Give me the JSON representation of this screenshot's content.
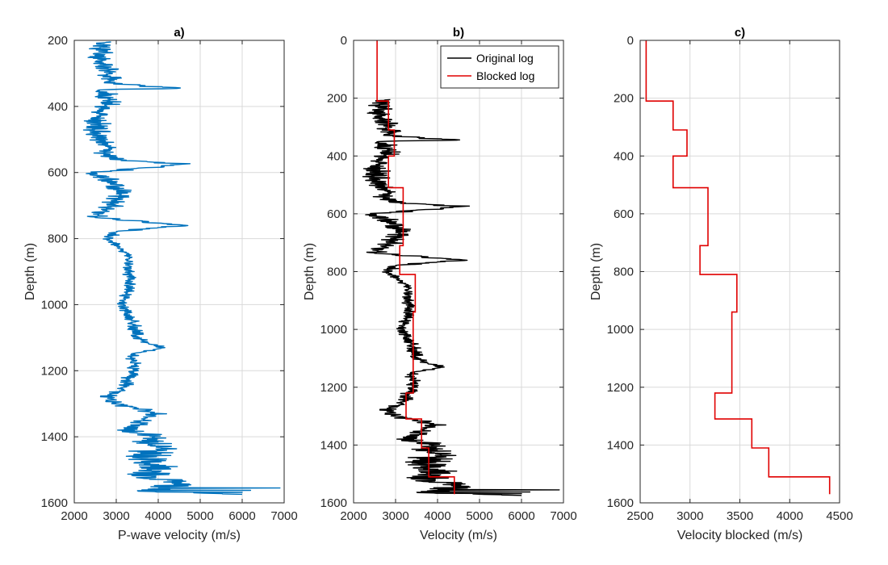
{
  "chart_data": [
    {
      "type": "line",
      "title": "a)",
      "xlabel": "P-wave velocity (m/s)",
      "ylabel": "Depth (m)",
      "xlim": [
        2000,
        7000
      ],
      "ylim": [
        200,
        1600
      ],
      "y_reversed": true,
      "x_ticks": [
        2000,
        3000,
        4000,
        5000,
        6000,
        7000
      ],
      "y_ticks": [
        200,
        400,
        600,
        800,
        1000,
        1200,
        1400,
        1600
      ],
      "grid": true,
      "series": [
        {
          "kind": "jagged",
          "color": "#0072BD",
          "points": [
            [
              205,
              2700
            ],
            [
              250,
              2600
            ],
            [
              300,
              2800
            ],
            [
              330,
              2850
            ],
            [
              345,
              4450
            ],
            [
              350,
              2600
            ],
            [
              380,
              2900
            ],
            [
              420,
              2600
            ],
            [
              470,
              2500
            ],
            [
              510,
              2700
            ],
            [
              560,
              2900
            ],
            [
              575,
              4600
            ],
            [
              600,
              2500
            ],
            [
              650,
              3100
            ],
            [
              700,
              2900
            ],
            [
              735,
              2500
            ],
            [
              760,
              4600
            ],
            [
              780,
              2900
            ],
            [
              800,
              2800
            ],
            [
              850,
              3300
            ],
            [
              900,
              3300
            ],
            [
              950,
              3300
            ],
            [
              1000,
              3100
            ],
            [
              1050,
              3400
            ],
            [
              1100,
              3500
            ],
            [
              1130,
              4100
            ],
            [
              1150,
              3400
            ],
            [
              1200,
              3400
            ],
            [
              1250,
              3200
            ],
            [
              1280,
              2800
            ],
            [
              1300,
              3000
            ],
            [
              1330,
              4000
            ],
            [
              1350,
              3600
            ],
            [
              1380,
              3400
            ],
            [
              1400,
              3800
            ],
            [
              1430,
              4000
            ],
            [
              1460,
              3700
            ],
            [
              1490,
              3900
            ],
            [
              1520,
              3700
            ],
            [
              1540,
              4500
            ],
            [
              1565,
              3800
            ],
            [
              1575,
              6000
            ]
          ],
          "amplitude": [
            [
              205,
              400
            ],
            [
              350,
              350
            ],
            [
              500,
              380
            ],
            [
              650,
              380
            ],
            [
              780,
              300
            ],
            [
              800,
              150
            ],
            [
              1100,
              200
            ],
            [
              1200,
              200
            ],
            [
              1300,
              280
            ],
            [
              1350,
              350
            ],
            [
              1400,
              500
            ],
            [
              1500,
              700
            ],
            [
              1575,
              600
            ]
          ],
          "spikes": [
            [
              1555,
              6900
            ],
            [
              1562,
              6200
            ],
            [
              1568,
              6000
            ]
          ]
        }
      ]
    },
    {
      "type": "line",
      "title": "b)",
      "xlabel": "Velocity (m/s)",
      "ylabel": "Depth (m)",
      "xlim": [
        2000,
        7000
      ],
      "ylim": [
        0,
        1600
      ],
      "y_reversed": true,
      "x_ticks": [
        2000,
        3000,
        4000,
        5000,
        6000,
        7000
      ],
      "y_ticks": [
        0,
        200,
        400,
        600,
        800,
        1000,
        1200,
        1400,
        1600
      ],
      "grid": true,
      "legend": "top-right",
      "series": [
        {
          "name": "Original log",
          "kind": "jagged",
          "color": "#000000",
          "points": [
            [
              205,
              2700
            ],
            [
              250,
              2600
            ],
            [
              300,
              2800
            ],
            [
              330,
              2850
            ],
            [
              345,
              4450
            ],
            [
              350,
              2600
            ],
            [
              380,
              2900
            ],
            [
              420,
              2600
            ],
            [
              470,
              2500
            ],
            [
              510,
              2700
            ],
            [
              560,
              2900
            ],
            [
              575,
              4600
            ],
            [
              600,
              2500
            ],
            [
              650,
              3100
            ],
            [
              700,
              2900
            ],
            [
              735,
              2500
            ],
            [
              760,
              4600
            ],
            [
              780,
              2900
            ],
            [
              800,
              2800
            ],
            [
              850,
              3300
            ],
            [
              900,
              3300
            ],
            [
              950,
              3300
            ],
            [
              1000,
              3100
            ],
            [
              1050,
              3400
            ],
            [
              1100,
              3500
            ],
            [
              1130,
              4100
            ],
            [
              1150,
              3400
            ],
            [
              1200,
              3400
            ],
            [
              1250,
              3200
            ],
            [
              1280,
              2800
            ],
            [
              1300,
              3000
            ],
            [
              1330,
              4000
            ],
            [
              1350,
              3600
            ],
            [
              1380,
              3400
            ],
            [
              1400,
              3800
            ],
            [
              1430,
              4000
            ],
            [
              1460,
              3700
            ],
            [
              1490,
              3900
            ],
            [
              1520,
              3700
            ],
            [
              1540,
              4500
            ],
            [
              1565,
              3800
            ],
            [
              1575,
              6000
            ]
          ],
          "amplitude": [
            [
              205,
              400
            ],
            [
              350,
              350
            ],
            [
              500,
              380
            ],
            [
              650,
              380
            ],
            [
              780,
              300
            ],
            [
              800,
              150
            ],
            [
              1100,
              200
            ],
            [
              1200,
              200
            ],
            [
              1300,
              280
            ],
            [
              1350,
              350
            ],
            [
              1400,
              500
            ],
            [
              1500,
              700
            ],
            [
              1575,
              600
            ]
          ],
          "spikes": [
            [
              1555,
              6900
            ],
            [
              1562,
              6200
            ],
            [
              1568,
              6000
            ]
          ]
        },
        {
          "name": "Blocked log",
          "kind": "step",
          "color": "#E00000",
          "steps": [
            [
              0,
              210,
              2560
            ],
            [
              210,
              310,
              2830
            ],
            [
              310,
              400,
              2970
            ],
            [
              400,
              510,
              2830
            ],
            [
              510,
              710,
              3180
            ],
            [
              710,
              810,
              3100
            ],
            [
              810,
              940,
              3470
            ],
            [
              940,
              1220,
              3420
            ],
            [
              1220,
              1310,
              3250
            ],
            [
              1310,
              1410,
              3620
            ],
            [
              1410,
              1510,
              3790
            ],
            [
              1510,
              1570,
              4400
            ]
          ]
        }
      ]
    },
    {
      "type": "line",
      "title": "c)",
      "xlabel": "Velocity blocked (m/s)",
      "ylabel": "Depth (m)",
      "xlim": [
        2500,
        4500
      ],
      "ylim": [
        0,
        1600
      ],
      "y_reversed": true,
      "x_ticks": [
        2500,
        3000,
        3500,
        4000,
        4500
      ],
      "y_ticks": [
        0,
        200,
        400,
        600,
        800,
        1000,
        1200,
        1400,
        1600
      ],
      "grid": true,
      "series": [
        {
          "kind": "step",
          "color": "#E00000",
          "steps": [
            [
              0,
              210,
              2560
            ],
            [
              210,
              310,
              2830
            ],
            [
              310,
              400,
              2970
            ],
            [
              400,
              510,
              2830
            ],
            [
              510,
              710,
              3180
            ],
            [
              710,
              810,
              3100
            ],
            [
              810,
              940,
              3470
            ],
            [
              940,
              1220,
              3420
            ],
            [
              1220,
              1310,
              3250
            ],
            [
              1310,
              1410,
              3620
            ],
            [
              1410,
              1510,
              3790
            ],
            [
              1510,
              1570,
              4400
            ]
          ]
        }
      ]
    }
  ]
}
